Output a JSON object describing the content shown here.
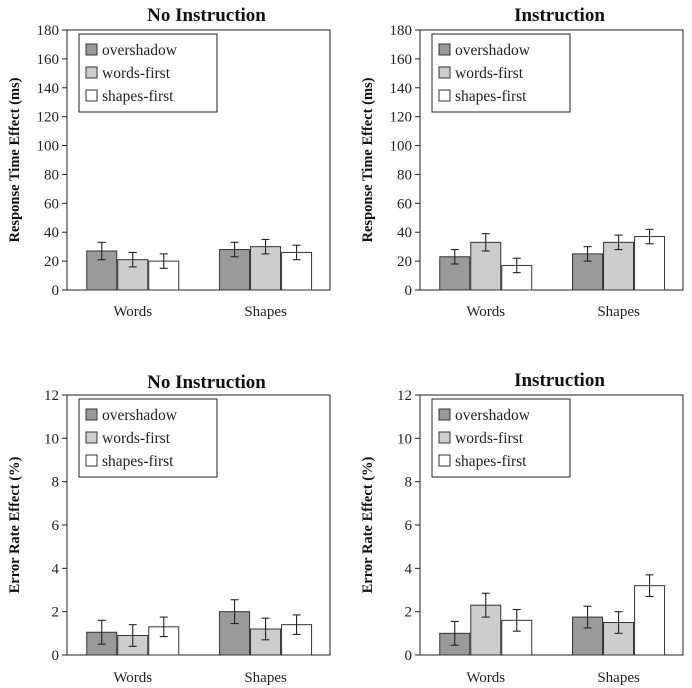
{
  "colors": {
    "overshadow": "#9a9a9a",
    "words_first": "#cdcdcd",
    "shapes_first": "#ffffff"
  },
  "chart_data": [
    {
      "type": "bar",
      "title": "No Instruction",
      "ylabel": "Response Time Effect (ms)",
      "ylim": [
        0,
        180
      ],
      "yticks": [
        0,
        20,
        40,
        60,
        80,
        100,
        120,
        140,
        160,
        180
      ],
      "legend_position": "top-left",
      "categories": [
        "Words",
        "Shapes"
      ],
      "series": [
        {
          "name": "overshadow",
          "values": [
            27,
            28
          ],
          "errors": [
            6,
            5
          ]
        },
        {
          "name": "words-first",
          "values": [
            21,
            30
          ],
          "errors": [
            5,
            5
          ]
        },
        {
          "name": "shapes-first",
          "values": [
            20,
            26
          ],
          "errors": [
            5,
            5
          ]
        }
      ]
    },
    {
      "type": "bar",
      "title": "Instruction",
      "ylabel": "Response Time Effect (ms)",
      "ylim": [
        0,
        180
      ],
      "yticks": [
        0,
        20,
        40,
        60,
        80,
        100,
        120,
        140,
        160,
        180
      ],
      "legend_position": "top-left",
      "categories": [
        "Words",
        "Shapes"
      ],
      "series": [
        {
          "name": "overshadow",
          "values": [
            23,
            25
          ],
          "errors": [
            5,
            5
          ]
        },
        {
          "name": "words-first",
          "values": [
            33,
            33
          ],
          "errors": [
            6,
            5
          ]
        },
        {
          "name": "shapes-first",
          "values": [
            17,
            37
          ],
          "errors": [
            5,
            5
          ]
        }
      ]
    },
    {
      "type": "bar",
      "title": "No Instruction",
      "ylabel": "Error Rate Effect (%)",
      "ylim": [
        0,
        12
      ],
      "yticks": [
        0,
        2,
        4,
        6,
        8,
        10,
        12
      ],
      "legend_position": "top-left",
      "categories": [
        "Words",
        "Shapes"
      ],
      "series": [
        {
          "name": "overshadow",
          "values": [
            1.05,
            2.0
          ],
          "errors": [
            0.55,
            0.55
          ]
        },
        {
          "name": "words-first",
          "values": [
            0.9,
            1.2
          ],
          "errors": [
            0.5,
            0.5
          ]
        },
        {
          "name": "shapes-first",
          "values": [
            1.3,
            1.4
          ],
          "errors": [
            0.45,
            0.45
          ]
        }
      ]
    },
    {
      "type": "bar",
      "title": "Instruction",
      "ylabel": "Error Rate Effect (%)",
      "ylim": [
        0,
        12
      ],
      "yticks": [
        0,
        2,
        4,
        6,
        8,
        10,
        12
      ],
      "legend_position": "top-left",
      "categories": [
        "Words",
        "Shapes"
      ],
      "series": [
        {
          "name": "overshadow",
          "values": [
            1.0,
            1.75
          ],
          "errors": [
            0.55,
            0.5
          ]
        },
        {
          "name": "words-first",
          "values": [
            2.3,
            1.5
          ],
          "errors": [
            0.55,
            0.5
          ]
        },
        {
          "name": "shapes-first",
          "values": [
            1.6,
            3.2
          ],
          "errors": [
            0.5,
            0.5
          ]
        }
      ]
    }
  ]
}
